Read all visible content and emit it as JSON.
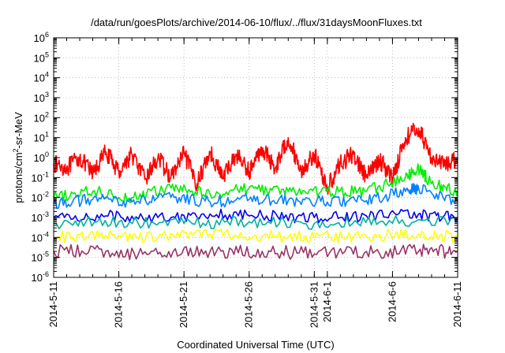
{
  "chart_data": {
    "type": "line",
    "title": "/data/run/goesPlots/archive/2014-06-10/flux/../flux/31daysMoonFluxes.txt",
    "xlabel": "Coordinated Universal Time (UTC)",
    "ylabel": "protons/cm2-sr-MeV",
    "ylabel_parts": {
      "before": "protons/cm",
      "sup": "2",
      "after": "-sr-MeV"
    },
    "yscale": "log",
    "ylim": [
      1e-06,
      1000000.0
    ],
    "xlim": [
      "2014-05-11",
      "2014-06-11"
    ],
    "x_tick_labels": [
      "2014-5-11",
      "2014-5-16",
      "2014-5-21",
      "2014-5-26",
      "2014-5-31",
      "2014-6-1",
      "2014-6-6",
      "2014-6-11"
    ],
    "x_tick_dates": [
      "2014-05-11",
      "2014-05-16",
      "2014-05-21",
      "2014-05-26",
      "2014-05-31",
      "2014-06-01",
      "2014-06-06",
      "2014-06-11"
    ],
    "y_tick_labels": [
      {
        "base": "10",
        "exp": "6"
      },
      {
        "base": "10",
        "exp": "5"
      },
      {
        "base": "10",
        "exp": "4"
      },
      {
        "base": "10",
        "exp": "3"
      },
      {
        "base": "10",
        "exp": "2"
      },
      {
        "base": "10",
        "exp": "1"
      },
      {
        "base": "10",
        "exp": "0"
      },
      {
        "base": "10",
        "exp": "-1"
      },
      {
        "base": "10",
        "exp": "-2"
      },
      {
        "base": "10",
        "exp": "-3"
      },
      {
        "base": "10",
        "exp": "-4"
      },
      {
        "base": "10",
        "exp": "-5"
      },
      {
        "base": "10",
        "exp": "-6"
      }
    ],
    "y_tick_values": [
      1000000.0,
      100000.0,
      10000.0,
      1000.0,
      100.0,
      10.0,
      1.0,
      0.1,
      0.01,
      0.001,
      0.0001,
      1e-05,
      1e-06
    ],
    "grid": true,
    "legend": "none",
    "series": [
      {
        "color": "#ff0000",
        "x": [
          "2014-05-11",
          "2014-05-12",
          "2014-05-13",
          "2014-05-14",
          "2014-05-15",
          "2014-05-16",
          "2014-05-17",
          "2014-05-18",
          "2014-05-19",
          "2014-05-20",
          "2014-05-21",
          "2014-05-22",
          "2014-05-23",
          "2014-05-24",
          "2014-05-25",
          "2014-05-26",
          "2014-05-27",
          "2014-05-28",
          "2014-05-29",
          "2014-05-30",
          "2014-05-31",
          "2014-06-01",
          "2014-06-02",
          "2014-06-03",
          "2014-06-04",
          "2014-06-05",
          "2014-06-06",
          "2014-06-07",
          "2014-06-08",
          "2014-06-09",
          "2014-06-10",
          "2014-06-11"
        ],
        "y": [
          0.5,
          0.3,
          1.0,
          0.15,
          2.0,
          0.2,
          1.5,
          0.08,
          1.0,
          0.1,
          1.5,
          0.05,
          2.0,
          0.1,
          1.5,
          0.2,
          3.0,
          0.3,
          10,
          0.2,
          1.5,
          0.03,
          0.5,
          1.5,
          0.1,
          0.8,
          0.1,
          10,
          30,
          1.0,
          0.4,
          1.0
        ]
      },
      {
        "color": "#00ee00",
        "x": [
          "2014-05-11",
          "2014-05-14",
          "2014-05-17",
          "2014-05-20",
          "2014-05-23",
          "2014-05-26",
          "2014-05-29",
          "2014-06-01",
          "2014-06-04",
          "2014-06-07",
          "2014-06-08",
          "2014-06-09",
          "2014-06-11"
        ],
        "y": [
          0.01,
          0.02,
          0.01,
          0.03,
          0.015,
          0.03,
          0.02,
          0.02,
          0.02,
          0.1,
          0.3,
          0.05,
          0.02
        ]
      },
      {
        "color": "#0080ff",
        "x": [
          "2014-05-11",
          "2014-05-14",
          "2014-05-17",
          "2014-05-20",
          "2014-05-23",
          "2014-05-26",
          "2014-05-29",
          "2014-06-01",
          "2014-06-04",
          "2014-06-07",
          "2014-06-08",
          "2014-06-11"
        ],
        "y": [
          0.005,
          0.008,
          0.006,
          0.01,
          0.006,
          0.008,
          0.007,
          0.006,
          0.007,
          0.02,
          0.03,
          0.006
        ]
      },
      {
        "color": "#0000ee",
        "x": [
          "2014-05-11",
          "2014-05-15",
          "2014-05-19",
          "2014-05-23",
          "2014-05-27",
          "2014-05-31",
          "2014-06-04",
          "2014-06-08",
          "2014-06-11"
        ],
        "y": [
          0.001,
          0.0012,
          0.001,
          0.0015,
          0.0012,
          0.001,
          0.0012,
          0.0015,
          0.001
        ]
      },
      {
        "color": "#00b0a0",
        "x": [
          "2014-05-11",
          "2014-05-16",
          "2014-05-21",
          "2014-05-26",
          "2014-05-31",
          "2014-06-05",
          "2014-06-11"
        ],
        "y": [
          0.0005,
          0.0006,
          0.0005,
          0.0006,
          0.0005,
          0.0006,
          0.0006
        ]
      },
      {
        "color": "#ffff00",
        "x": [
          "2014-05-11",
          "2014-05-15",
          "2014-05-19",
          "2014-05-23",
          "2014-05-27",
          "2014-05-31",
          "2014-06-04",
          "2014-06-08",
          "2014-06-11"
        ],
        "y": [
          0.0001,
          0.00012,
          0.0001,
          0.00015,
          0.00012,
          0.0001,
          0.00012,
          0.00015,
          0.0001
        ]
      },
      {
        "color": "#993366",
        "x": [
          "2014-05-11",
          "2014-05-15",
          "2014-05-19",
          "2014-05-23",
          "2014-05-27",
          "2014-05-31",
          "2014-06-04",
          "2014-06-08",
          "2014-06-11"
        ],
        "y": [
          2e-05,
          2e-05,
          1.5e-05,
          2e-05,
          2e-05,
          1.5e-05,
          2e-05,
          2e-05,
          2e-05
        ]
      }
    ]
  }
}
